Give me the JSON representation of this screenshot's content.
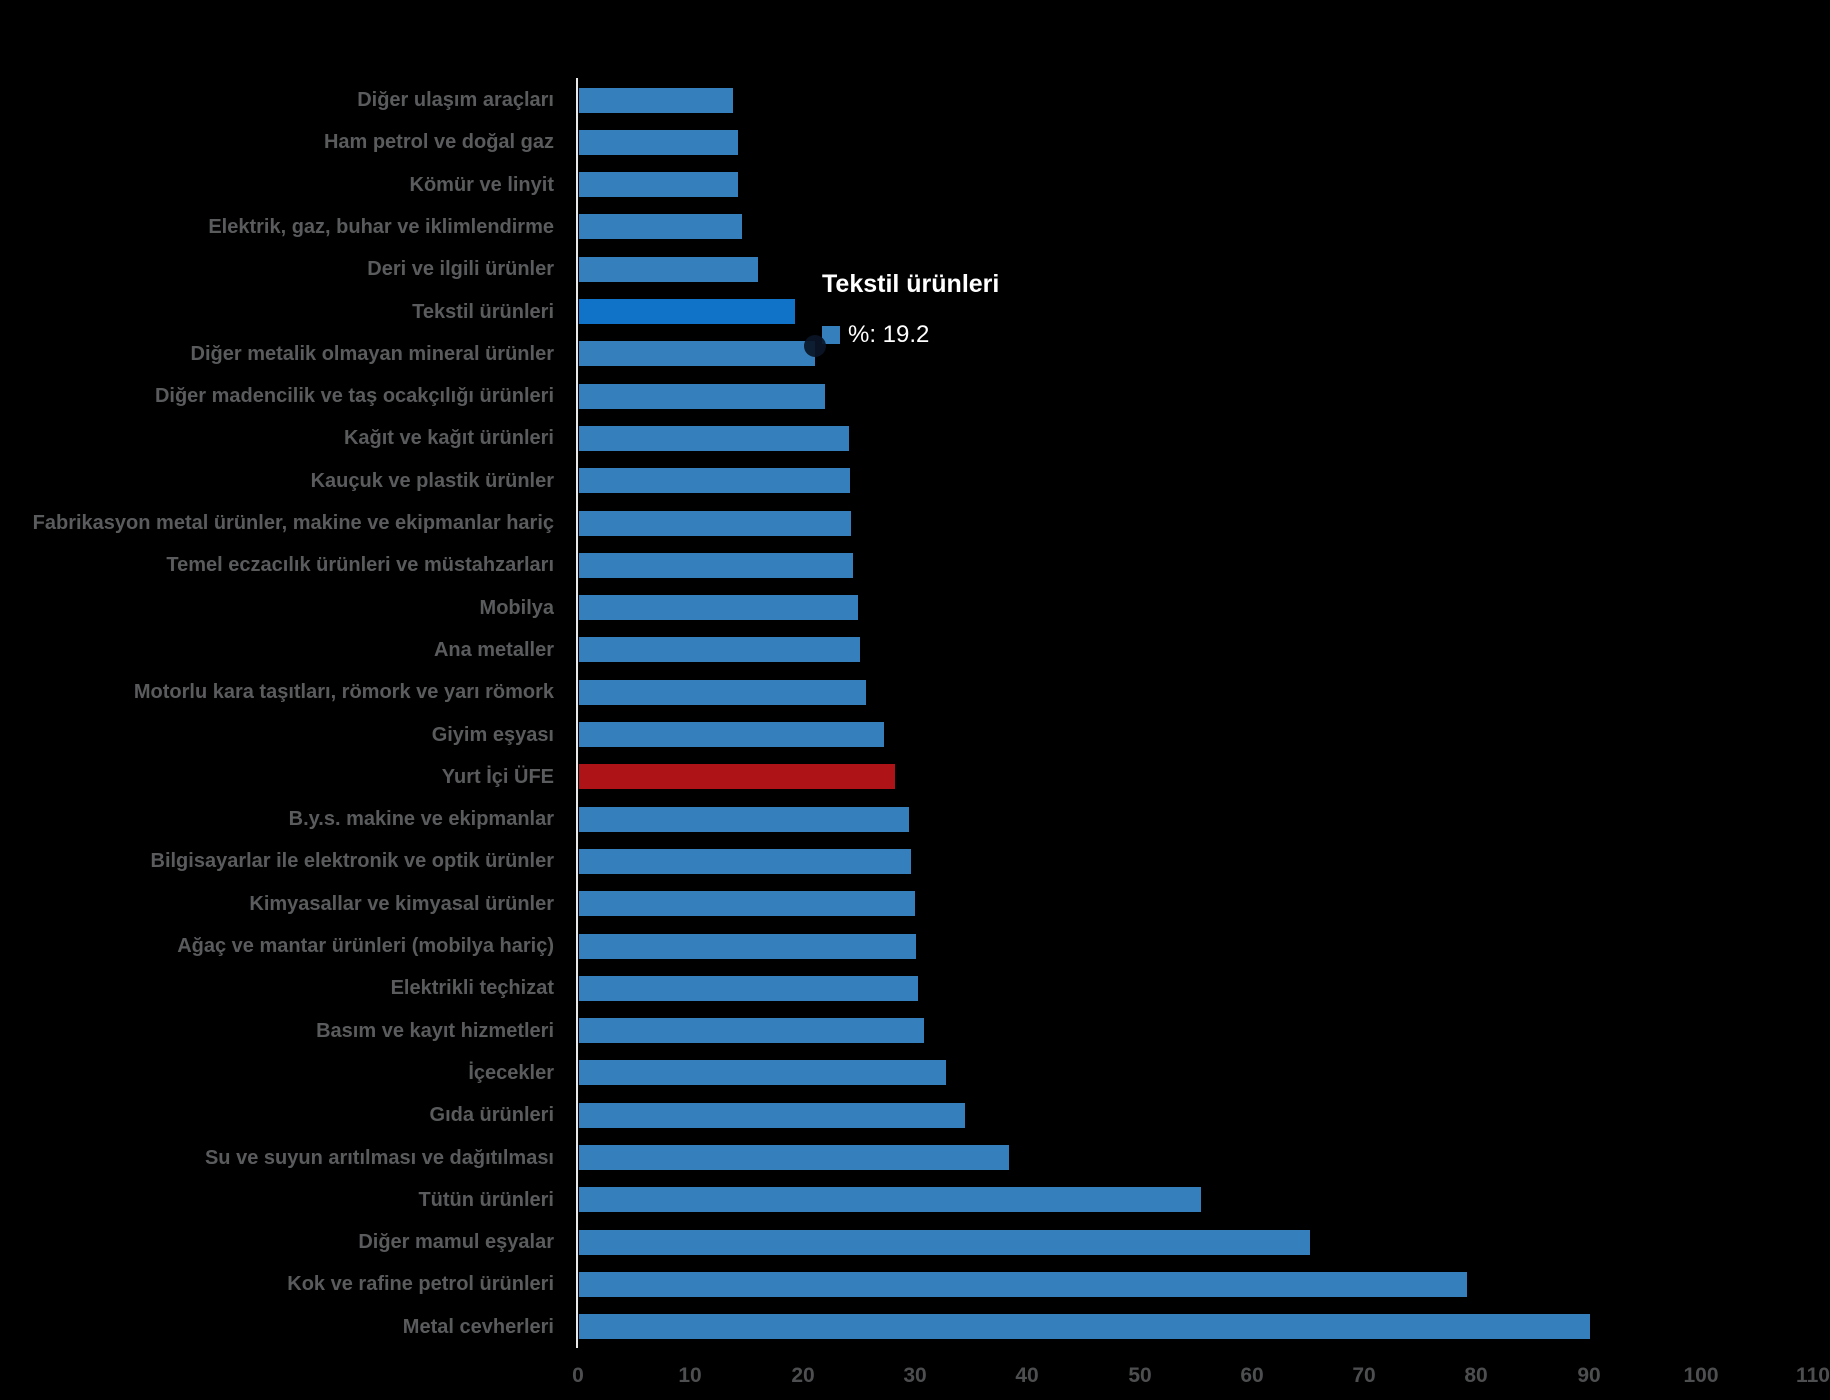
{
  "chart_data": {
    "type": "bar",
    "orientation": "horizontal",
    "title": "",
    "xlabel": "",
    "ylabel": "",
    "xlim": [
      0,
      110
    ],
    "x_ticks": [
      0,
      10,
      20,
      30,
      40,
      50,
      60,
      70,
      80,
      90,
      100,
      110
    ],
    "grid": "off",
    "legend": "none",
    "categories": [
      "Diğer ulaşım araçları",
      "Ham petrol ve doğal gaz",
      "Kömür ve linyit",
      "Elektrik, gaz, buhar ve iklimlendirme",
      "Deri ve ilgili ürünler",
      "Tekstil ürünleri",
      "Diğer metalik olmayan mineral ürünler",
      "Diğer madencilik ve taş ocakçılığı ürünleri",
      "Kağıt ve kağıt ürünleri",
      "Kauçuk ve plastik ürünler",
      "Fabrikasyon metal ürünler, makine ve ekipmanlar hariç",
      "Temel eczacılık ürünleri ve müstahzarları",
      "Mobilya",
      "Ana metaller",
      "Motorlu kara taşıtları, römork ve yarı römork",
      "Giyim eşyası",
      "Yurt İçi ÜFE",
      "B.y.s. makine ve ekipmanlar",
      "Bilgisayarlar ile elektronik ve optik ürünler",
      "Kimyasallar ve kimyasal ürünler",
      "Ağaç ve mantar ürünleri (mobilya hariç)",
      "Elektrikli teçhizat",
      "Basım ve kayıt hizmetleri",
      "İçecekler",
      "Gıda ürünleri",
      "Su ve suyun arıtılması ve dağıtılması",
      "Tütün ürünleri",
      "Diğer mamul eşyalar",
      "Kok ve rafine petrol ürünleri",
      "Metal cevherleri"
    ],
    "values": [
      13.7,
      14.2,
      14.2,
      14.5,
      15.9,
      19.2,
      21.0,
      21.9,
      24.0,
      24.1,
      24.2,
      24.4,
      24.8,
      25.0,
      25.6,
      27.2,
      28.1,
      29.4,
      29.6,
      29.9,
      30.0,
      30.2,
      30.7,
      32.7,
      34.4,
      38.3,
      55.4,
      65.1,
      79.1,
      90.0
    ],
    "bar_styles": [
      "default",
      "default",
      "default",
      "default",
      "default",
      "highlight",
      "default",
      "default",
      "default",
      "default",
      "default",
      "default",
      "default",
      "default",
      "default",
      "default",
      "reference",
      "default",
      "default",
      "default",
      "default",
      "default",
      "default",
      "default",
      "default",
      "default",
      "default",
      "default",
      "default",
      "default"
    ],
    "colors": {
      "default_bar": "#3580BC",
      "highlight_bar": "#1173C8",
      "reference_bar": "#AE1417",
      "category_label": "#5A5B5D",
      "tick_label": "#4D4E50",
      "axis_line": "#E9E9E9",
      "tooltip_text": "#FFFFFF",
      "background": "#000000"
    },
    "tooltip": {
      "title": "Tekstil ürünleri",
      "series_swatch_color": "#3580BC",
      "text": "%: 19.2",
      "value": 19.2
    }
  }
}
